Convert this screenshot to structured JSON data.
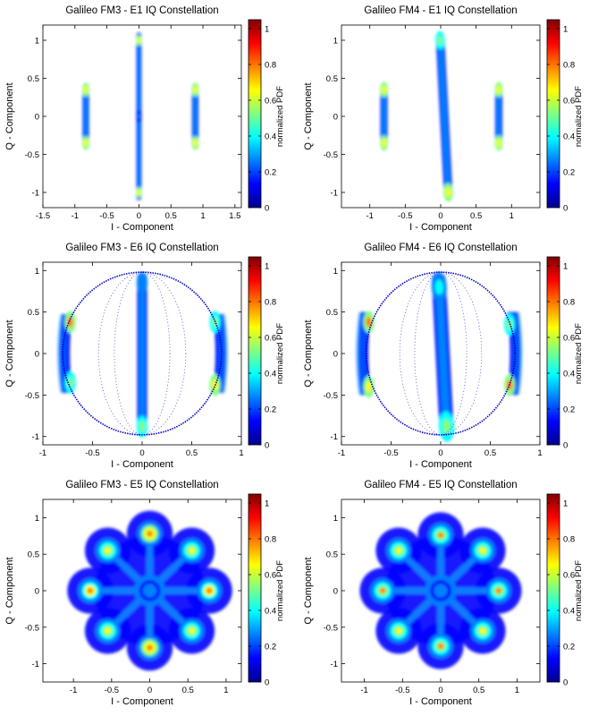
{
  "colors": {
    "colormap": [
      "#00008f",
      "#0000ff",
      "#0080ff",
      "#00ffff",
      "#80ff80",
      "#ffff00",
      "#ff8000",
      "#ff0000",
      "#800000"
    ],
    "background": "#ffffff",
    "colormap_name": "jet"
  },
  "chart_data": [
    {
      "type": "heatmap",
      "title": "Galileo FM3 - E1 IQ Constellation",
      "xlabel": "I - Component",
      "ylabel": "Q - Component",
      "xlim": [
        -1.5,
        1.6
      ],
      "ylim": [
        -1.2,
        1.2
      ],
      "xticks": [
        "-1.5",
        "-1",
        "-0.5",
        "0",
        "0.5",
        "1",
        "1.5"
      ],
      "yticks": [
        "-1",
        "-0.5",
        "0",
        "0.5",
        "1"
      ],
      "colorbar": {
        "label": "normalized PDF",
        "ticks": [
          "0",
          "0.2",
          "0.4",
          "0.6",
          "0.8",
          "1"
        ],
        "range": [
          0,
          1.05
        ]
      },
      "clusters": [
        {
          "shape": "bar",
          "x": 0,
          "y": 0,
          "width": 0.08,
          "height": 2.2,
          "peaks": [
            {
              "y": 1.0,
              "v": 0.6
            },
            {
              "y": -1.0,
              "v": 0.6
            },
            {
              "y": 0,
              "v": 0.2
            }
          ]
        },
        {
          "shape": "bar",
          "x": -0.83,
          "y": 0,
          "width": 0.1,
          "height": 0.85,
          "peaks": [
            {
              "y": 0.35,
              "v": 0.65
            },
            {
              "y": -0.35,
              "v": 0.65
            }
          ]
        },
        {
          "shape": "bar",
          "x": 0.88,
          "y": 0,
          "width": 0.1,
          "height": 0.85,
          "peaks": [
            {
              "y": 0.35,
              "v": 0.65
            },
            {
              "y": -0.35,
              "v": 0.65
            }
          ]
        }
      ]
    },
    {
      "type": "heatmap",
      "title": "Galileo FM4 - E1 IQ Constellation",
      "xlabel": "I - Component",
      "ylabel": "Q - Component",
      "xlim": [
        -1.4,
        1.4
      ],
      "ylim": [
        -1.2,
        1.2
      ],
      "xticks": [
        "-1",
        "-0.5",
        "0",
        "0.5",
        "1"
      ],
      "yticks": [
        "-1",
        "-0.5",
        "0",
        "0.5",
        "1"
      ],
      "colorbar": {
        "label": "normalized PDF",
        "ticks": [
          "0",
          "0.2",
          "0.4",
          "0.6",
          "0.8",
          "1"
        ],
        "range": [
          0,
          1.05
        ]
      },
      "clusters": [
        {
          "shape": "bar",
          "x": 0.05,
          "y": 0,
          "width": 0.12,
          "height": 2.15,
          "tilt": -3,
          "peaks": [
            {
              "y": 1.0,
              "v": 0.55
            },
            {
              "y": -1.0,
              "v": 0.6
            }
          ]
        },
        {
          "shape": "bar",
          "x": -0.8,
          "y": 0,
          "width": 0.1,
          "height": 0.85,
          "peaks": [
            {
              "y": 0.35,
              "v": 0.65
            },
            {
              "y": -0.35,
              "v": 0.65
            }
          ]
        },
        {
          "shape": "bar",
          "x": 0.82,
          "y": 0,
          "width": 0.1,
          "height": 0.85,
          "peaks": [
            {
              "y": 0.35,
              "v": 0.65
            },
            {
              "y": -0.35,
              "v": 0.65
            }
          ]
        }
      ]
    },
    {
      "type": "heatmap",
      "title": "Galileo FM3 - E6 IQ Constellation",
      "xlabel": "I - Component",
      "ylabel": "Q - Component",
      "xlim": [
        -1.0,
        1.0
      ],
      "ylim": [
        -1.1,
        1.1
      ],
      "xticks": [
        "-1",
        "-0.5",
        "0",
        "0.5",
        "1"
      ],
      "yticks": [
        "-1",
        "-0.5",
        "0",
        "0.5",
        "1"
      ],
      "colorbar": {
        "label": "normalized PDF",
        "ticks": [
          "0",
          "0.2",
          "0.4",
          "0.6",
          "0.8",
          "1"
        ],
        "range": [
          0,
          1.05
        ]
      },
      "ring": {
        "rx": 0.8,
        "ry": 0.98
      },
      "clusters": [
        {
          "shape": "bar",
          "x": 0,
          "y": 0,
          "width": 0.1,
          "height": 1.95,
          "peaks": [
            {
              "y": 0.85,
              "v": 0.3
            },
            {
              "y": -0.88,
              "v": 0.55
            }
          ]
        },
        {
          "shape": "arc",
          "x": -0.75,
          "y": 0,
          "width": 0.1,
          "height": 0.95,
          "peaks": [
            {
              "y": 0.38,
              "v": 0.7
            },
            {
              "y": -0.35,
              "v": 0.55
            }
          ]
        },
        {
          "shape": "arc",
          "x": 0.76,
          "y": 0,
          "width": 0.1,
          "height": 0.95,
          "peaks": [
            {
              "y": 0.38,
              "v": 0.55
            },
            {
              "y": -0.38,
              "v": 0.65
            }
          ]
        }
      ]
    },
    {
      "type": "heatmap",
      "title": "Galileo FM4 - E6 IQ Constellation",
      "xlabel": "I - Component",
      "ylabel": "Q - Component",
      "xlim": [
        -1.0,
        1.0
      ],
      "ylim": [
        -1.1,
        1.1
      ],
      "xticks": [
        "-1",
        "-0.5",
        "0",
        "0.5",
        "1"
      ],
      "yticks": [
        "-1",
        "-0.5",
        "0",
        "0.5",
        "1"
      ],
      "colorbar": {
        "label": "normalized PDF",
        "ticks": [
          "0",
          "0.2",
          "0.4",
          "0.6",
          "0.8",
          "1"
        ],
        "range": [
          0,
          1.05
        ]
      },
      "ring": {
        "rx": 0.75,
        "ry": 0.98
      },
      "clusters": [
        {
          "shape": "bar",
          "x": 0.02,
          "y": 0,
          "width": 0.14,
          "height": 1.95,
          "tilt": -3,
          "peaks": [
            {
              "y": 0.8,
              "v": 0.35
            },
            {
              "y": -0.88,
              "v": 0.5
            }
          ]
        },
        {
          "shape": "arc",
          "x": -0.75,
          "y": 0,
          "width": 0.1,
          "height": 1.0,
          "peaks": [
            {
              "y": 0.38,
              "v": 0.75
            },
            {
              "y": -0.4,
              "v": 0.6
            }
          ]
        },
        {
          "shape": "arc",
          "x": 0.72,
          "y": 0,
          "width": 0.1,
          "height": 1.0,
          "peaks": [
            {
              "y": 0.35,
              "v": 0.55
            },
            {
              "y": -0.38,
              "v": 0.7
            }
          ]
        }
      ]
    },
    {
      "type": "heatmap",
      "title": "Galileo FM3 - E5 IQ Constellation",
      "xlabel": "I - Component",
      "ylabel": "Q - Component",
      "xlim": [
        -1.4,
        1.2
      ],
      "ylim": [
        -1.25,
        1.25
      ],
      "xticks": [
        "-1",
        "-0.5",
        "0",
        "0.5",
        "1"
      ],
      "yticks": [
        "-1",
        "-0.5",
        "0",
        "0.5",
        "1"
      ],
      "colorbar": {
        "label": "normalized PDF",
        "ticks": [
          "0",
          "0.2",
          "0.4",
          "0.6",
          "0.8",
          "1"
        ],
        "range": [
          0,
          1.05
        ]
      },
      "clusters": [
        {
          "shape": "spot",
          "x": 0,
          "y": 0.78,
          "v": 0.8
        },
        {
          "shape": "spot",
          "x": 0.55,
          "y": 0.55,
          "v": 0.6
        },
        {
          "shape": "spot",
          "x": 0.78,
          "y": 0,
          "v": 0.75
        },
        {
          "shape": "spot",
          "x": 0.55,
          "y": -0.55,
          "v": 0.6
        },
        {
          "shape": "spot",
          "x": 0,
          "y": -0.78,
          "v": 0.8
        },
        {
          "shape": "spot",
          "x": -0.55,
          "y": -0.55,
          "v": 0.6
        },
        {
          "shape": "spot",
          "x": -0.78,
          "y": 0,
          "v": 0.75
        },
        {
          "shape": "spot",
          "x": -0.55,
          "y": 0.55,
          "v": 0.6
        },
        {
          "shape": "spot",
          "x": 0,
          "y": 0,
          "v": 0.3
        }
      ]
    },
    {
      "type": "heatmap",
      "title": "Galileo FM4 - E5 IQ Constellation",
      "xlabel": "I - Component",
      "ylabel": "Q - Component",
      "xlim": [
        -1.3,
        1.3
      ],
      "ylim": [
        -1.25,
        1.25
      ],
      "xticks": [
        "-1",
        "-0.5",
        "0",
        "0.5",
        "1"
      ],
      "yticks": [
        "-1",
        "-0.5",
        "0",
        "0.5",
        "1"
      ],
      "colorbar": {
        "label": "normalized PDF",
        "ticks": [
          "0",
          "0.2",
          "0.4",
          "0.6",
          "0.8",
          "1"
        ],
        "range": [
          0,
          1.05
        ]
      },
      "clusters": [
        {
          "shape": "spot",
          "x": 0,
          "y": 0.76,
          "v": 0.7
        },
        {
          "shape": "spot",
          "x": 0.55,
          "y": 0.55,
          "v": 0.6
        },
        {
          "shape": "spot",
          "x": 0.76,
          "y": 0,
          "v": 0.7
        },
        {
          "shape": "spot",
          "x": 0.55,
          "y": -0.55,
          "v": 0.6
        },
        {
          "shape": "spot",
          "x": 0,
          "y": -0.76,
          "v": 0.7
        },
        {
          "shape": "spot",
          "x": -0.55,
          "y": -0.55,
          "v": 0.6
        },
        {
          "shape": "spot",
          "x": -0.76,
          "y": 0,
          "v": 0.7
        },
        {
          "shape": "spot",
          "x": -0.55,
          "y": 0.55,
          "v": 0.6
        },
        {
          "shape": "spot",
          "x": 0,
          "y": 0,
          "v": 0.3
        }
      ]
    }
  ]
}
